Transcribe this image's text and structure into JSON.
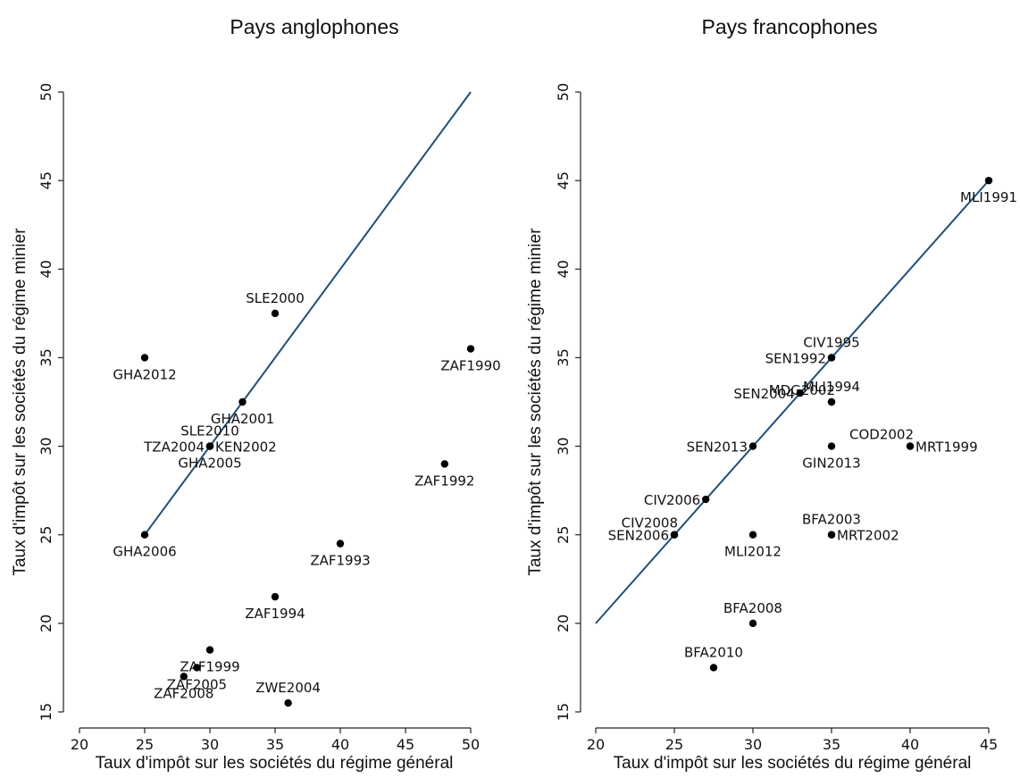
{
  "chart_data": [
    {
      "type": "scatter",
      "title": "Pays anglophones",
      "xlabel": "Taux d'impôt sur les sociétés du régime général",
      "ylabel": "Taux d'impôt sur les sociétés du régime minier",
      "xlim": [
        20,
        50
      ],
      "ylim": [
        15,
        50
      ],
      "xticks": [
        20,
        25,
        30,
        35,
        40,
        45,
        50
      ],
      "yticks": [
        15,
        20,
        25,
        30,
        35,
        40,
        45,
        50
      ],
      "line": {
        "x": [
          25,
          50
        ],
        "y": [
          25,
          50
        ],
        "color": "#1f4e79"
      },
      "points": [
        {
          "label": "SLE2000",
          "x": 35,
          "y": 37.5,
          "pos": "above"
        },
        {
          "label": "GHA2012",
          "x": 25,
          "y": 35,
          "pos": "below"
        },
        {
          "label": "ZAF1990",
          "x": 50,
          "y": 35.5,
          "pos": "below"
        },
        {
          "label": "GHA2001",
          "x": 32.5,
          "y": 32.5,
          "pos": "below"
        },
        {
          "label": "SLE2010",
          "x": 30,
          "y": 30,
          "pos": "above"
        },
        {
          "label": "TZA2004",
          "x": 30,
          "y": 30,
          "pos": "left"
        },
        {
          "label": "KEN2002",
          "x": 30,
          "y": 30,
          "pos": "right"
        },
        {
          "label": "GHA2005",
          "x": 30,
          "y": 30,
          "pos": "below"
        },
        {
          "label": "ZAF1992",
          "x": 48,
          "y": 29,
          "pos": "below"
        },
        {
          "label": "GHA2006",
          "x": 25,
          "y": 25,
          "pos": "below"
        },
        {
          "label": "ZAF1993",
          "x": 40,
          "y": 24.5,
          "pos": "below"
        },
        {
          "label": "ZAF1994",
          "x": 35,
          "y": 21.5,
          "pos": "below"
        },
        {
          "label": "ZAF1999",
          "x": 30,
          "y": 18.5,
          "pos": "below"
        },
        {
          "label": "ZAF2005",
          "x": 29,
          "y": 17.5,
          "pos": "below"
        },
        {
          "label": "ZAF2008",
          "x": 28,
          "y": 17,
          "pos": "below"
        },
        {
          "label": "ZWE2004",
          "x": 36,
          "y": 15.5,
          "pos": "above"
        }
      ]
    },
    {
      "type": "scatter",
      "title": "Pays francophones",
      "xlabel": "Taux d'impôt sur les sociétés du régime général",
      "ylabel": "Taux d'impôt sur les sociétés du régime minier",
      "xlim": [
        20,
        45
      ],
      "ylim": [
        15,
        50
      ],
      "xticks": [
        20,
        25,
        30,
        35,
        40,
        45
      ],
      "yticks": [
        15,
        20,
        25,
        30,
        35,
        40,
        45,
        50
      ],
      "line": {
        "x": [
          20,
          45
        ],
        "y": [
          20,
          45
        ],
        "color": "#1f4e79"
      },
      "points": [
        {
          "label": "MLI1991",
          "x": 45,
          "y": 45,
          "pos": "below"
        },
        {
          "label": "CIV1995",
          "x": 35,
          "y": 35,
          "pos": "above"
        },
        {
          "label": "SEN1992",
          "x": 35,
          "y": 35,
          "pos": "left"
        },
        {
          "label": "MLI1994",
          "x": 35,
          "y": 32.5,
          "pos": "above"
        },
        {
          "label": "MDG2002",
          "x": 35,
          "y": 32.5,
          "pos": "aboveleft"
        },
        {
          "label": "SEN2004",
          "x": 33,
          "y": 33,
          "pos": "left"
        },
        {
          "label": "SEN2013",
          "x": 30,
          "y": 30,
          "pos": "left"
        },
        {
          "label": "GIN2013",
          "x": 35,
          "y": 30,
          "pos": "below"
        },
        {
          "label": "COD2002",
          "x": 40,
          "y": 30,
          "pos": "aboveleft"
        },
        {
          "label": "MRT1999",
          "x": 40,
          "y": 30,
          "pos": "right"
        },
        {
          "label": "CIV2006",
          "x": 27,
          "y": 27,
          "pos": "left"
        },
        {
          "label": "CIV2008",
          "x": 25,
          "y": 25,
          "pos": "aboveleft"
        },
        {
          "label": "SEN2006",
          "x": 25,
          "y": 25,
          "pos": "left"
        },
        {
          "label": "MLI2012",
          "x": 30,
          "y": 25,
          "pos": "below"
        },
        {
          "label": "BFA2003",
          "x": 35,
          "y": 25,
          "pos": "above"
        },
        {
          "label": "MRT2002",
          "x": 35,
          "y": 25,
          "pos": "right"
        },
        {
          "label": "BFA2008",
          "x": 30,
          "y": 20,
          "pos": "above"
        },
        {
          "label": "BFA2010",
          "x": 27.5,
          "y": 17.5,
          "pos": "above"
        }
      ]
    }
  ]
}
